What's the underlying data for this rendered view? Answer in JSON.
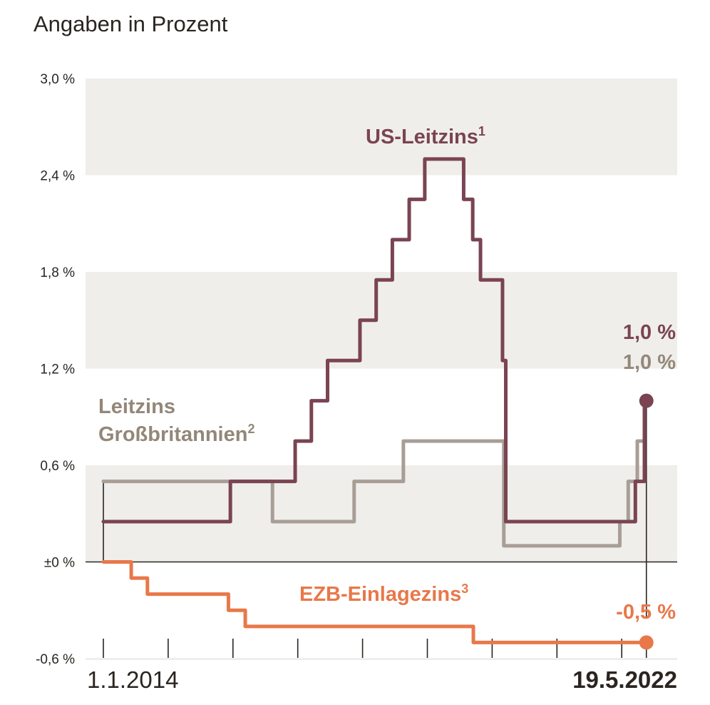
{
  "chart_data": {
    "type": "line",
    "subtitle": "Angaben in Prozent",
    "xlabel": "",
    "ylabel": "",
    "ylim": [
      -0.6,
      3.0
    ],
    "xlim": [
      "2014-01-01",
      "2022-05-19"
    ],
    "grid": "alternating horizontal bands",
    "y_ticks": [
      {
        "value": 3.0,
        "label": "3,0 %"
      },
      {
        "value": 2.4,
        "label": "2,4 %"
      },
      {
        "value": 1.8,
        "label": "1,8 %"
      },
      {
        "value": 1.2,
        "label": "1,2 %"
      },
      {
        "value": 0.6,
        "label": "0,6 %"
      },
      {
        "value": 0.0,
        "label": "±0 %"
      },
      {
        "value": -0.6,
        "label": "-0,6 %"
      }
    ],
    "x_tick_years": [
      2014,
      2015,
      2016,
      2017,
      2018,
      2019,
      2020,
      2021,
      2022
    ],
    "x_start_label": "1.1.2014",
    "x_end_label": "19.5.2022",
    "series": [
      {
        "name": "US-Leitzins",
        "footnote": "1",
        "color": "#7a4452",
        "end_value": 1.0,
        "end_label": "1,0 %",
        "steps": [
          {
            "t": 2014.0,
            "v": 0.25
          },
          {
            "t": 2015.96,
            "v": 0.5
          },
          {
            "t": 2016.96,
            "v": 0.75
          },
          {
            "t": 2017.21,
            "v": 1.0
          },
          {
            "t": 2017.46,
            "v": 1.25
          },
          {
            "t": 2017.96,
            "v": 1.5
          },
          {
            "t": 2018.21,
            "v": 1.75
          },
          {
            "t": 2018.46,
            "v": 2.0
          },
          {
            "t": 2018.72,
            "v": 2.25
          },
          {
            "t": 2018.96,
            "v": 2.5
          },
          {
            "t": 2019.56,
            "v": 2.25
          },
          {
            "t": 2019.7,
            "v": 2.0
          },
          {
            "t": 2019.82,
            "v": 1.75
          },
          {
            "t": 2020.16,
            "v": 1.25
          },
          {
            "t": 2020.21,
            "v": 0.25
          },
          {
            "t": 2022.21,
            "v": 0.5
          },
          {
            "t": 2022.35,
            "v": 1.0
          },
          {
            "t": 2022.38,
            "v": 1.0
          }
        ]
      },
      {
        "name": "Leitzins Großbritannien",
        "label_line1": "Leitzins",
        "label_line2": "Großbritannien",
        "footnote": "2",
        "color": "#a89e96",
        "text_color": "#938779",
        "end_value": 1.0,
        "end_label": "1,0 %",
        "steps": [
          {
            "t": 2014.0,
            "v": 0.5
          },
          {
            "t": 2016.61,
            "v": 0.25
          },
          {
            "t": 2017.87,
            "v": 0.5
          },
          {
            "t": 2018.63,
            "v": 0.75
          },
          {
            "t": 2020.18,
            "v": 0.1
          },
          {
            "t": 2021.97,
            "v": 0.25
          },
          {
            "t": 2022.1,
            "v": 0.5
          },
          {
            "t": 2022.24,
            "v": 0.75
          },
          {
            "t": 2022.35,
            "v": 1.0
          }
        ]
      },
      {
        "name": "EZB-Einlagezins",
        "footnote": "3",
        "color": "#e8784a",
        "end_value": -0.5,
        "end_label": "-0,5 %",
        "steps": [
          {
            "t": 2014.0,
            "v": 0.0
          },
          {
            "t": 2014.43,
            "v": -0.1
          },
          {
            "t": 2014.68,
            "v": -0.2
          },
          {
            "t": 2015.93,
            "v": -0.3
          },
          {
            "t": 2016.19,
            "v": -0.4
          },
          {
            "t": 2019.71,
            "v": -0.5
          },
          {
            "t": 2022.38,
            "v": -0.5
          }
        ]
      }
    ],
    "colors": {
      "band": "#efeeeb",
      "axis": "#2a2520",
      "text": "#2a2520"
    }
  }
}
